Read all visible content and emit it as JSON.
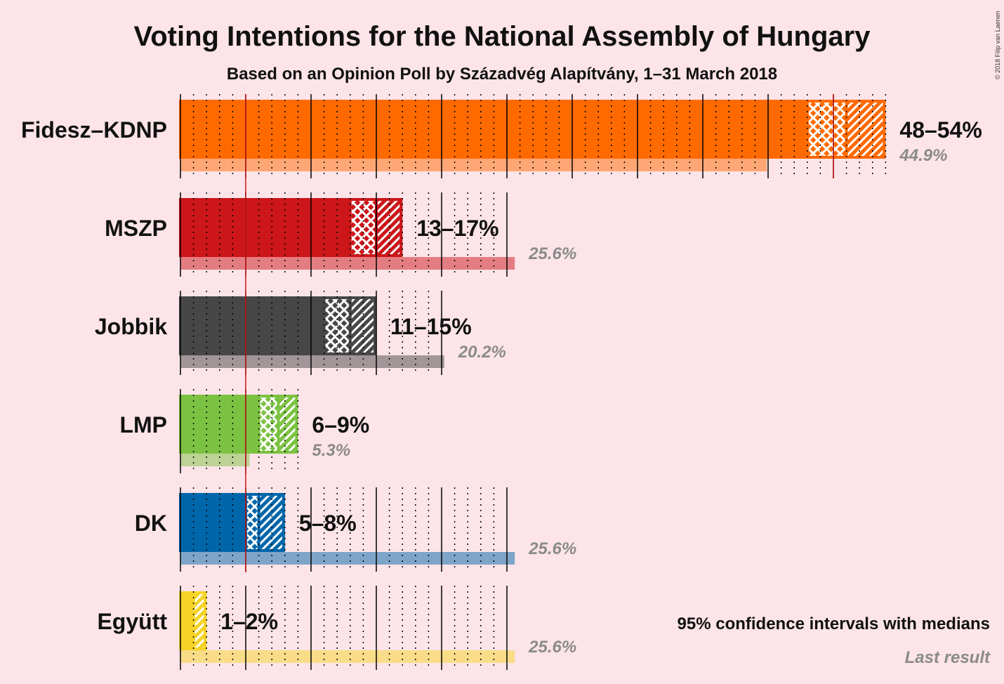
{
  "copyright": "© 2018 Filip van Laenen",
  "legend": {
    "ci": "95% confidence intervals with medians",
    "last": "Last result"
  },
  "chart_data": {
    "type": "bar",
    "title": "Voting Intentions for the National Assembly of Hungary",
    "subtitle": "Based on an Opinion Poll by Századvég Alapítvány, 1–31 March 2018",
    "threshold": 5,
    "series": [
      {
        "party": "Fidesz–KDNP",
        "color": "#ff6a00",
        "ci_low": 48,
        "ci_high": 54,
        "range_label": "48–54%",
        "median": 51,
        "last": 44.9,
        "last_label": "44.9%"
      },
      {
        "party": "MSZP",
        "color": "#cc1619",
        "ci_low": 13,
        "ci_high": 17,
        "range_label": "13–17%",
        "median": 15,
        "last": 25.6,
        "last_label": "25.6%"
      },
      {
        "party": "Jobbik",
        "color": "#474747",
        "ci_low": 11,
        "ci_high": 15,
        "range_label": "11–15%",
        "median": 13,
        "last": 20.2,
        "last_label": "20.2%"
      },
      {
        "party": "LMP",
        "color": "#7cc242",
        "ci_low": 6,
        "ci_high": 9,
        "range_label": "6–9%",
        "median": 7.5,
        "last": 5.3,
        "last_label": "5.3%"
      },
      {
        "party": "DK",
        "color": "#0066aa",
        "ci_low": 5,
        "ci_high": 8,
        "range_label": "5–8%",
        "median": 6,
        "last": 25.6,
        "last_label": "25.6%"
      },
      {
        "party": "Együtt",
        "color": "#f5d327",
        "ci_low": 1,
        "ci_high": 2,
        "range_label": "1–2%",
        "median": 1,
        "last": 25.6,
        "last_label": "25.6%"
      }
    ]
  }
}
